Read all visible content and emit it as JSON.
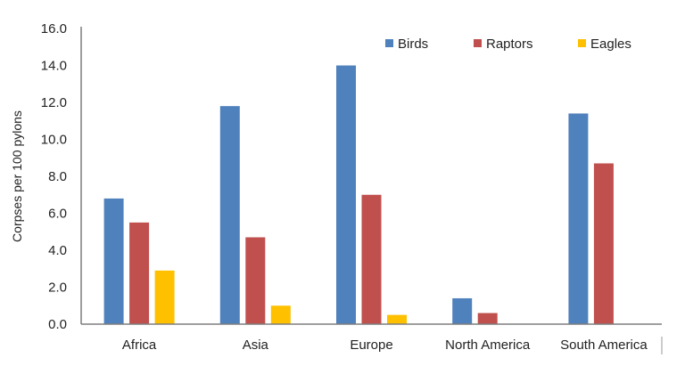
{
  "chart_data": {
    "type": "bar",
    "title": "",
    "xlabel": "",
    "ylabel": "Corpses per 100 pylons",
    "ylim": [
      0,
      16
    ],
    "yticks": [
      "0.0",
      "2.0",
      "4.0",
      "6.0",
      "8.0",
      "10.0",
      "12.0",
      "14.0",
      "16.0"
    ],
    "grid": false,
    "legend_position": "top-right",
    "categories": [
      "Africa",
      "Asia",
      "Europe",
      "North America",
      "South America"
    ],
    "series": [
      {
        "name": "Birds",
        "color": "#4F81BD",
        "values": [
          6.8,
          11.8,
          14.0,
          1.4,
          11.4
        ]
      },
      {
        "name": "Raptors",
        "color": "#C0504D",
        "values": [
          5.5,
          4.7,
          7.0,
          0.6,
          8.7
        ]
      },
      {
        "name": "Eagles",
        "color": "#FFC000",
        "values": [
          2.9,
          1.0,
          0.5,
          0,
          0
        ]
      }
    ]
  }
}
